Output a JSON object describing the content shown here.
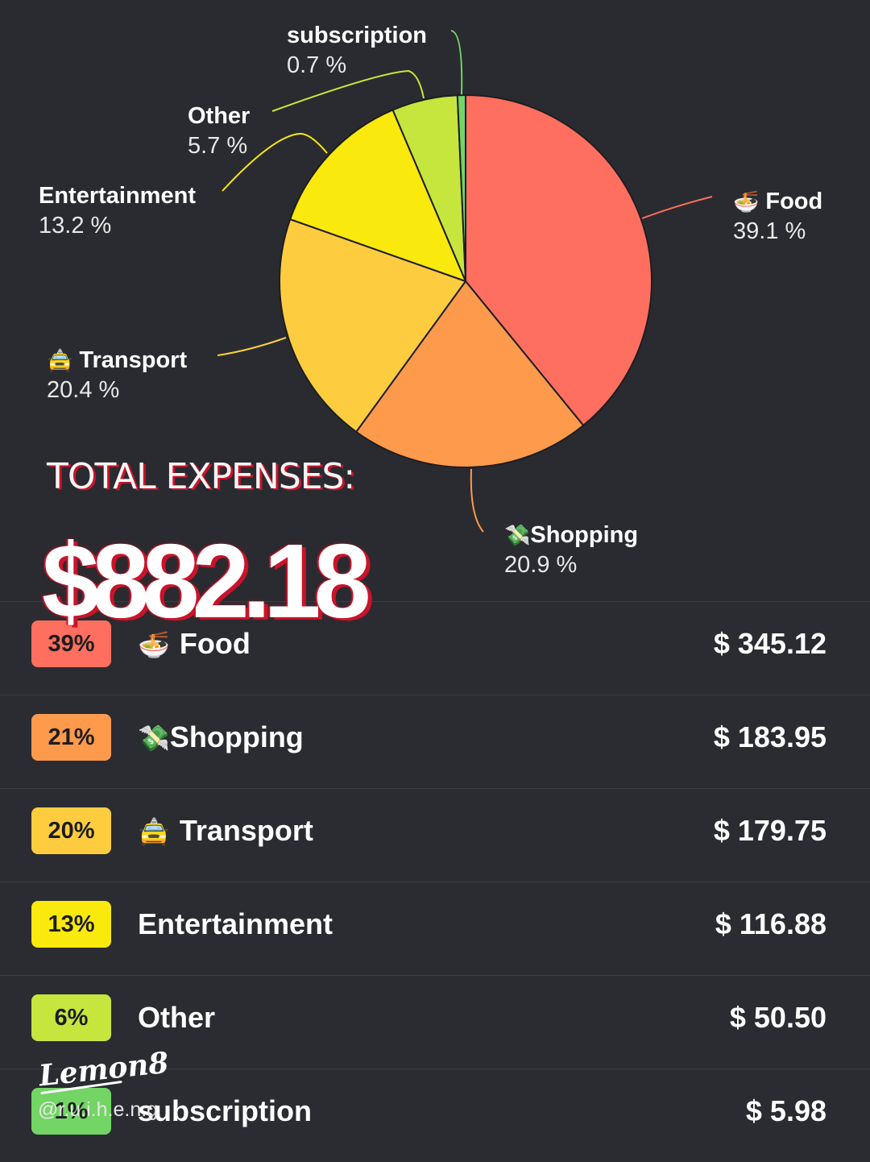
{
  "chart_data": {
    "type": "pie",
    "slices": [
      {
        "name": "Food",
        "emoji": "🍜",
        "percent": 39.1,
        "percent_label": "39.1 %",
        "color": "#fe6f5f"
      },
      {
        "name": "Shopping",
        "emoji": "💸",
        "percent": 20.9,
        "percent_label": "20.9 %",
        "color": "#fe9a4c"
      },
      {
        "name": "Transport",
        "emoji": "🚖",
        "percent": 20.4,
        "percent_label": "20.4 %",
        "color": "#fecd3f"
      },
      {
        "name": "Entertainment",
        "emoji": "",
        "percent": 13.2,
        "percent_label": "13.2 %",
        "color": "#fae90d"
      },
      {
        "name": "Other",
        "emoji": "",
        "percent": 5.7,
        "percent_label": "5.7 %",
        "color": "#c6e63e"
      },
      {
        "name": "subscription",
        "emoji": "",
        "percent": 0.7,
        "percent_label": "0.7 %",
        "color": "#72d564"
      }
    ]
  },
  "total": {
    "label": "TOTAL EXPENSES:",
    "value": "$882.18"
  },
  "expenses": [
    {
      "badge": "39%",
      "emoji": "🍜",
      "name": "Food",
      "amount": "$ 345.12",
      "color": "#fe6f5f"
    },
    {
      "badge": "21%",
      "emoji": "💸",
      "name": "Shopping",
      "amount": "$ 183.95",
      "color": "#fe9a4c"
    },
    {
      "badge": "20%",
      "emoji": "🚖",
      "name": "Transport",
      "amount": "$ 179.75",
      "color": "#fecd3f"
    },
    {
      "badge": "13%",
      "emoji": "",
      "name": "Entertainment",
      "amount": "$ 116.88",
      "color": "#fae90d"
    },
    {
      "badge": "6%",
      "emoji": "",
      "name": "Other",
      "amount": "$ 50.50",
      "color": "#c6e63e"
    },
    {
      "badge": "1%",
      "emoji": "",
      "name": "subscription",
      "amount": "$ 5.98",
      "color": "#72d564"
    }
  ],
  "watermark": {
    "brand": "Lemon8",
    "handle": "@r.u.i.h.e.n.g"
  }
}
